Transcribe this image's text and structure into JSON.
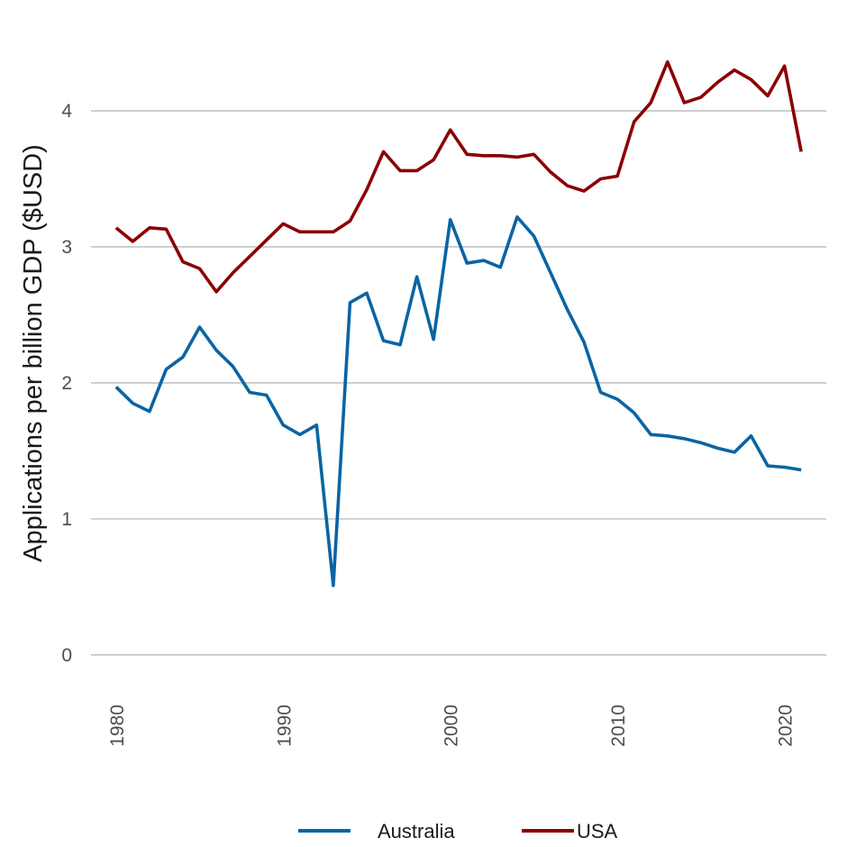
{
  "chart_data": {
    "type": "line",
    "title": "",
    "xlabel": "",
    "ylabel": "Applications per billion GDP ($USD)",
    "xlim": [
      1978.5,
      2022.5
    ],
    "ylim": [
      -0.2,
      4.55
    ],
    "x_ticks": [
      "1980",
      "1990",
      "2000",
      "2010",
      "2020"
    ],
    "y_ticks": [
      "0",
      "1",
      "2",
      "3",
      "4"
    ],
    "grid": "horizontal",
    "legend_position": "bottom",
    "x": [
      1980,
      1981,
      1982,
      1983,
      1984,
      1985,
      1986,
      1987,
      1988,
      1989,
      1990,
      1991,
      1992,
      1993,
      1994,
      1995,
      1996,
      1997,
      1998,
      1999,
      2000,
      2001,
      2002,
      2003,
      2004,
      2005,
      2006,
      2007,
      2008,
      2009,
      2010,
      2011,
      2012,
      2013,
      2014,
      2015,
      2016,
      2017,
      2018,
      2019,
      2020,
      2021
    ],
    "series": [
      {
        "name": "Australia",
        "color": "#0a64a4",
        "values": [
          1.97,
          1.85,
          1.79,
          2.1,
          2.19,
          2.41,
          2.24,
          2.12,
          1.93,
          1.91,
          1.69,
          1.62,
          1.69,
          0.51,
          2.59,
          2.66,
          2.31,
          2.28,
          2.78,
          2.32,
          3.2,
          2.88,
          2.9,
          2.85,
          3.22,
          3.08,
          2.81,
          2.54,
          2.3,
          1.93,
          1.88,
          1.78,
          1.62,
          1.61,
          1.59,
          1.56,
          1.52,
          1.49,
          1.61,
          1.39,
          1.38,
          1.36
        ]
      },
      {
        "name": "USA",
        "color": "#8b0000",
        "values": [
          3.14,
          3.04,
          3.14,
          3.13,
          2.89,
          2.84,
          2.67,
          2.81,
          2.93,
          3.05,
          3.17,
          3.11,
          3.11,
          3.11,
          3.19,
          3.42,
          3.7,
          3.56,
          3.56,
          3.64,
          3.86,
          3.68,
          3.67,
          3.67,
          3.66,
          3.68,
          3.55,
          3.45,
          3.41,
          3.5,
          3.52,
          3.92,
          4.06,
          4.36,
          4.06,
          4.1,
          4.21,
          4.3,
          4.23,
          4.11,
          4.33,
          3.7
        ]
      }
    ]
  }
}
